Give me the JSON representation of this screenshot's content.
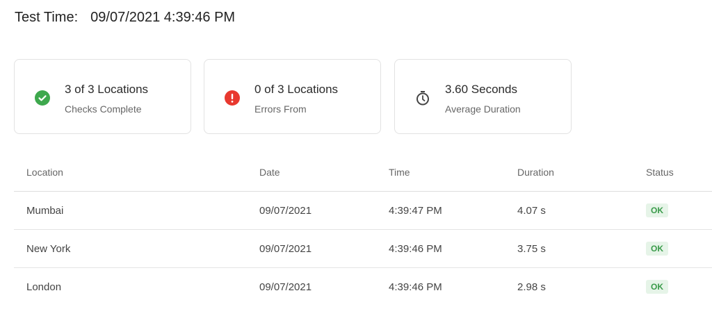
{
  "header": {
    "label": "Test Time:",
    "value": "09/07/2021 4:39:46 PM"
  },
  "cards": [
    {
      "icon": "check-circle-icon",
      "color": "#3ea84d",
      "main": "3 of 3 Locations",
      "sub": "Checks Complete"
    },
    {
      "icon": "error-circle-icon",
      "color": "#e8392f",
      "main": "0 of 3 Locations",
      "sub": "Errors From"
    },
    {
      "icon": "stopwatch-icon",
      "color": "#444444",
      "main": "3.60 Seconds",
      "sub": "Average Duration"
    }
  ],
  "table": {
    "headers": [
      "Location",
      "Date",
      "Time",
      "Duration",
      "Status"
    ],
    "rows": [
      [
        "Mumbai",
        "09/07/2021",
        "4:39:47 PM",
        "4.07 s",
        "OK"
      ],
      [
        "New York",
        "09/07/2021",
        "4:39:46 PM",
        "3.75 s",
        "OK"
      ],
      [
        "London",
        "09/07/2021",
        "4:39:46 PM",
        "2.98 s",
        "OK"
      ]
    ]
  }
}
